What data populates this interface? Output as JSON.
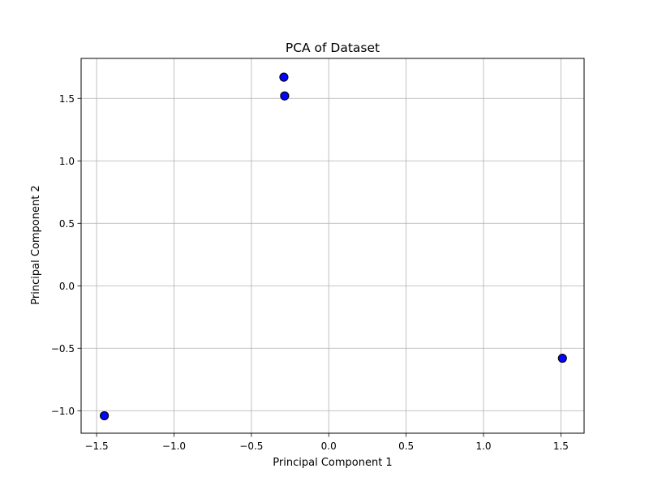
{
  "chart_data": {
    "type": "scatter",
    "title": "PCA of Dataset",
    "xlabel": "Principal Component 1",
    "ylabel": "Principal Component 2",
    "xlim": [
      -1.6,
      1.65
    ],
    "ylim": [
      -1.18,
      1.82
    ],
    "xticks": [
      -1.5,
      -1.0,
      -0.5,
      0.0,
      0.5,
      1.0,
      1.5
    ],
    "xtick_labels": [
      "−1.5",
      "−1.0",
      "−0.5",
      "0.0",
      "0.5",
      "1.0",
      "1.5"
    ],
    "yticks": [
      -1.0,
      -0.5,
      0.0,
      0.5,
      1.0,
      1.5
    ],
    "ytick_labels": [
      "−1.0",
      "−0.5",
      "0.0",
      "0.5",
      "1.0",
      "1.5"
    ],
    "grid": true,
    "marker_color": "#0000ff",
    "marker_edge_color": "#000000",
    "grid_color": "#b0b0b0",
    "points": [
      {
        "x": -0.29,
        "y": 1.67
      },
      {
        "x": -0.29,
        "y": 1.67
      },
      {
        "x": -0.285,
        "y": 1.52
      },
      {
        "x": -0.285,
        "y": 1.52
      },
      {
        "x": 1.51,
        "y": -0.58
      },
      {
        "x": 1.51,
        "y": -0.58
      },
      {
        "x": -1.45,
        "y": -1.04
      },
      {
        "x": -1.45,
        "y": -1.04
      }
    ]
  }
}
